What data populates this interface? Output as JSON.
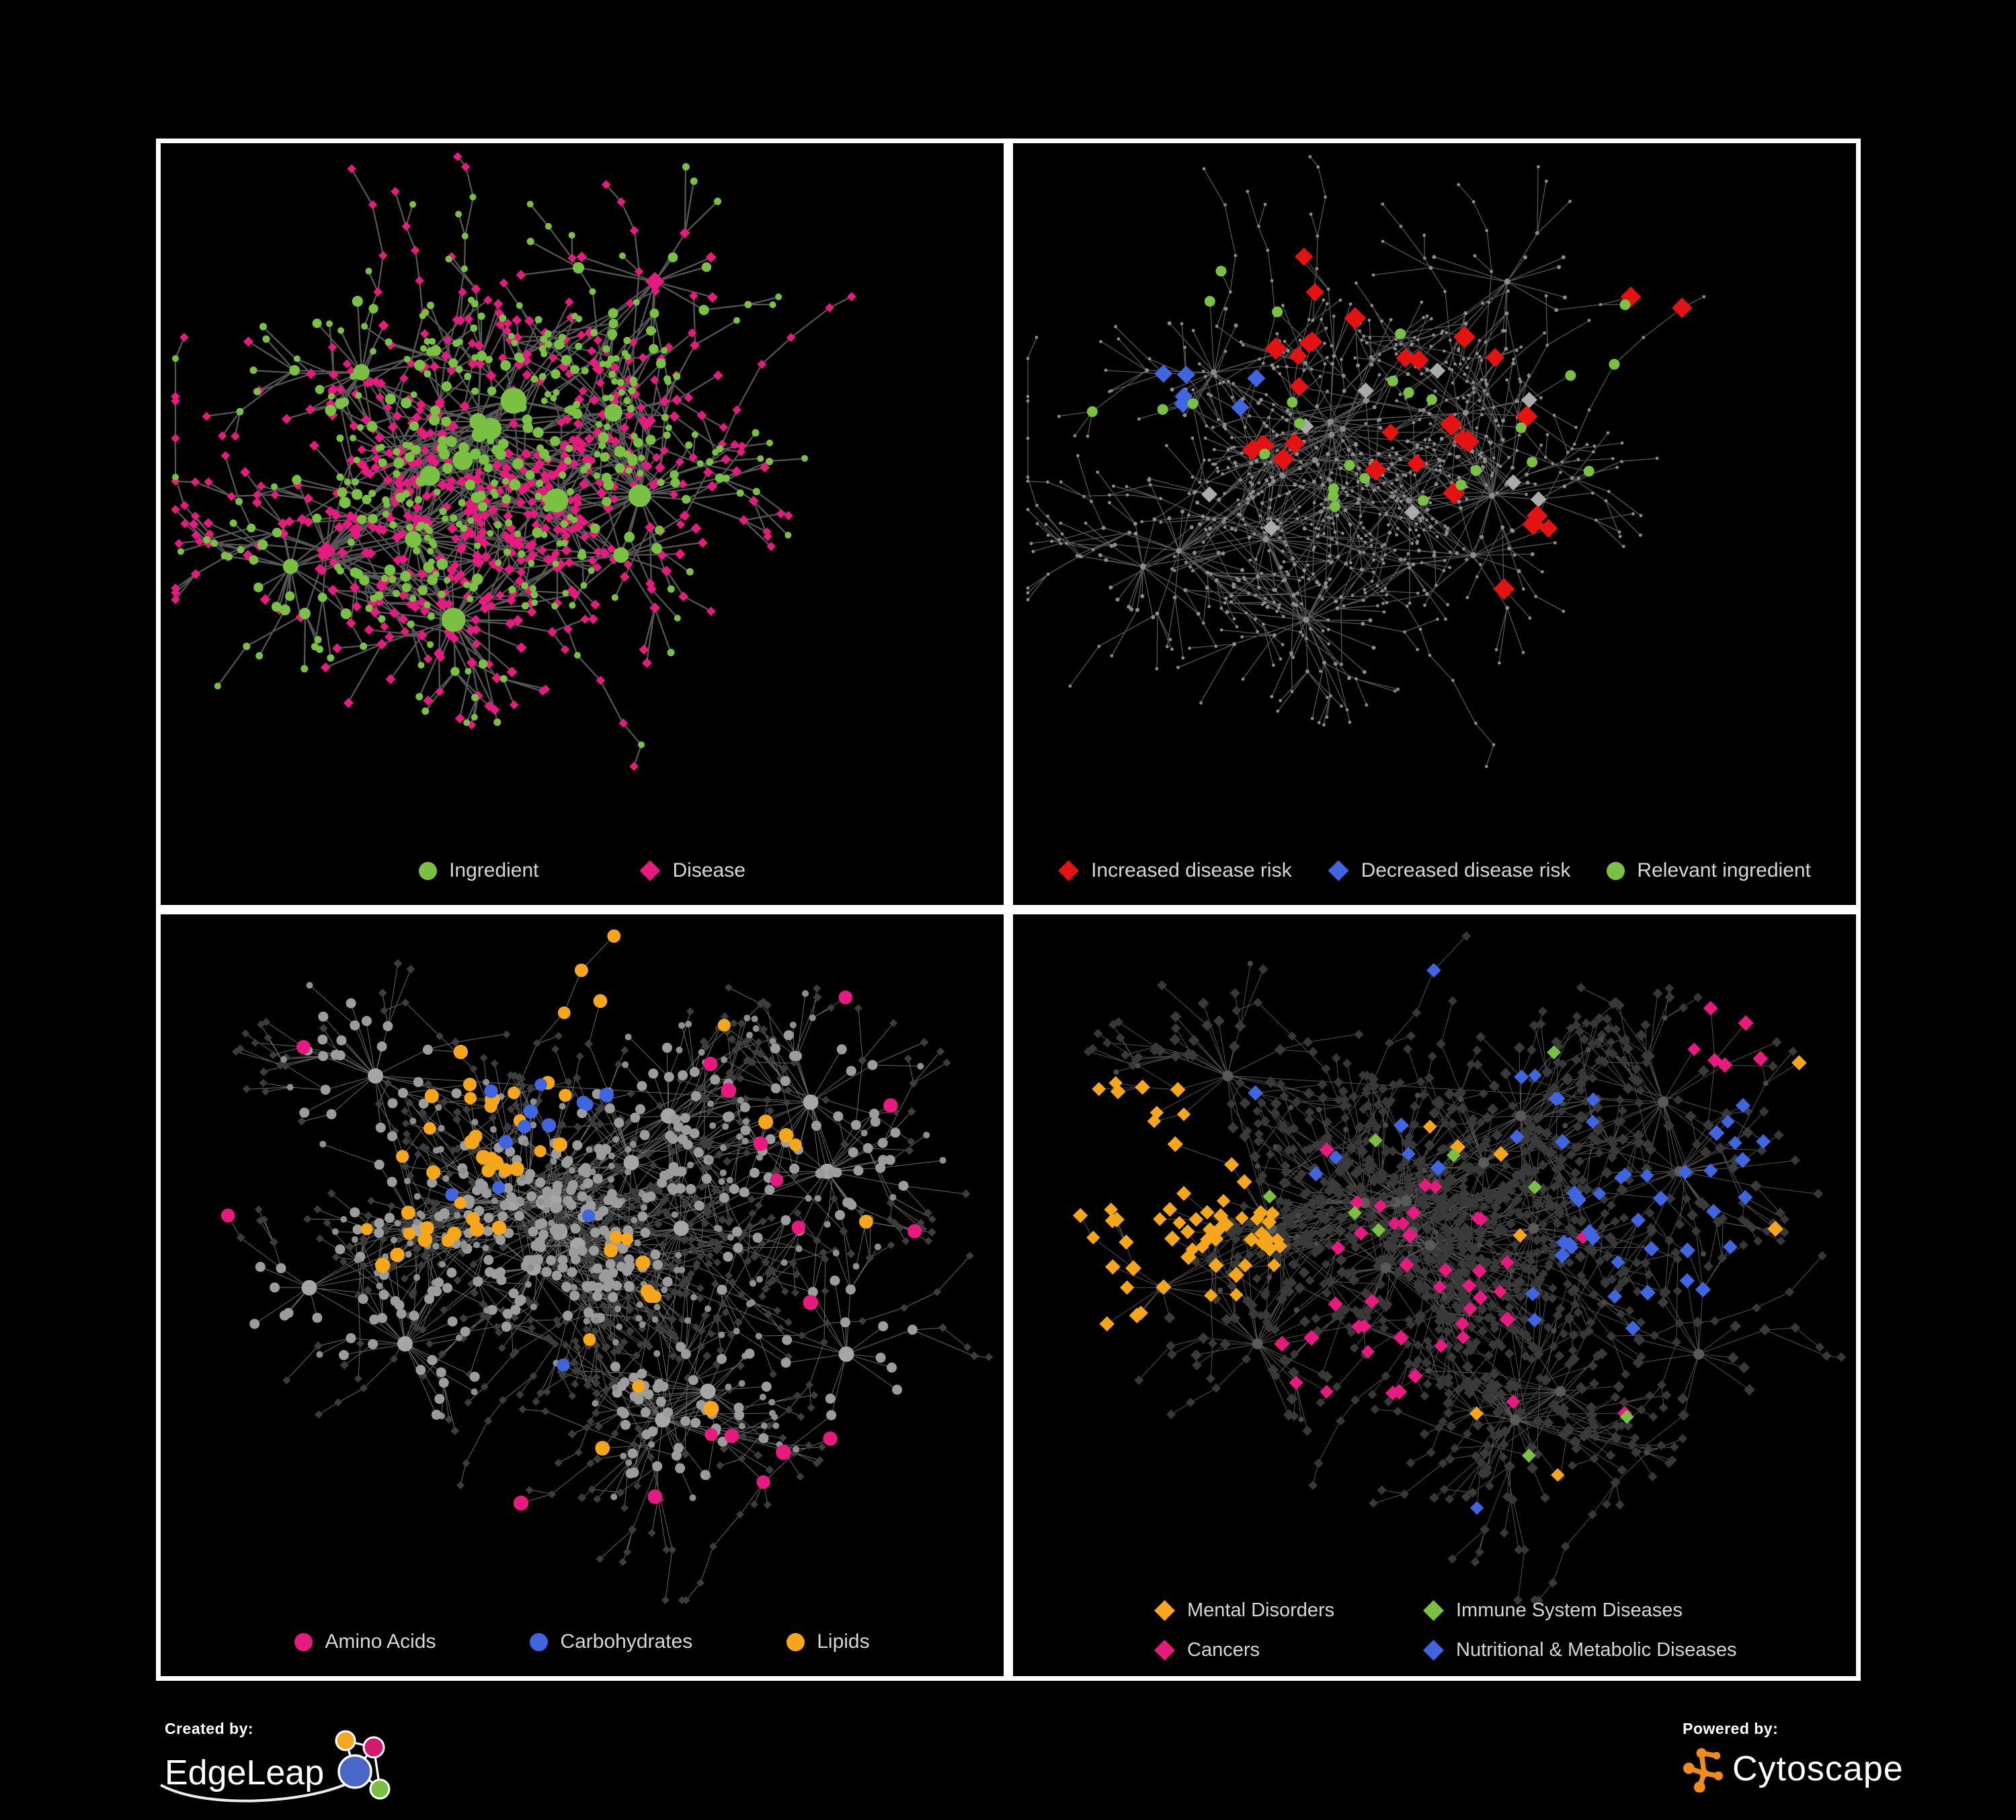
{
  "page": {
    "background": "#000000"
  },
  "colors": {
    "panel_border": "#ffffff",
    "legend_text": "#d6d6d6",
    "green": "#7ac143",
    "magenta": "#e61a7f",
    "red": "#e51212",
    "blue": "#3f66e0",
    "silver": "#ababab",
    "orange": "#f5a61b",
    "dark_diamond": "#3a3a3a",
    "gray_node": "#a6a6a6",
    "tiny_node": "#8c8c8c",
    "hub_gray": "#5a5a5a",
    "edge_dark": "#5d5d5d",
    "edge_mid": "#6b6b6b",
    "edge_faint": "#8b8b8b",
    "edge_soft": "#757575",
    "edgeleap_orange": "#f5a623",
    "edgeleap_pink": "#d6186e",
    "edgeleap_blue": "#4a67c7",
    "edgeleap_green": "#7ac143",
    "cytoscape_orange": "#f08c1e"
  },
  "panels": [
    {
      "id": "ingredient-disease",
      "legend": [
        {
          "label": "Ingredient",
          "shape": "circle",
          "color": "#7ac143"
        },
        {
          "label": "Disease",
          "shape": "diamond",
          "color": "#e61a7f"
        }
      ]
    },
    {
      "id": "disease-risk",
      "legend": [
        {
          "label": "Increased disease risk",
          "shape": "diamond",
          "color": "#e51212"
        },
        {
          "label": "Decreased disease risk",
          "shape": "diamond",
          "color": "#3f66e0"
        },
        {
          "label": "Relevant ingredient",
          "shape": "circle",
          "color": "#7ac143"
        }
      ]
    },
    {
      "id": "macronutrients",
      "legend": [
        {
          "label": "Amino Acids",
          "shape": "circle",
          "color": "#e61a7f"
        },
        {
          "label": "Carbohydrates",
          "shape": "circle",
          "color": "#3f66e0"
        },
        {
          "label": "Lipids",
          "shape": "circle",
          "color": "#f5a61b"
        }
      ]
    },
    {
      "id": "disease-classes",
      "legend": [
        {
          "label": "Mental Disorders",
          "shape": "diamond",
          "color": "#f5a61b"
        },
        {
          "label": "Immune System Diseases",
          "shape": "diamond",
          "color": "#7ac143"
        },
        {
          "label": "Cancers",
          "shape": "diamond",
          "color": "#e61a7f"
        },
        {
          "label": "Nutritional & Metabolic Diseases",
          "shape": "diamond",
          "color": "#3f66e0"
        }
      ]
    }
  ],
  "footer": {
    "created_by_label": "Created by:",
    "created_by_brand": "EdgeLeap",
    "powered_by_label": "Powered by:",
    "powered_by_brand": "Cytoscape"
  },
  "networks": {
    "top_seed": 11,
    "bottom_seed": 23,
    "p2_highlights": {
      "red": 34,
      "blue": 9,
      "silver": 9,
      "green": 27
    },
    "p3_highlights": {
      "orange": 57,
      "blue": 13,
      "pink": 18
    },
    "p4_highlights": {
      "orange": 76,
      "pink": 49,
      "blue": 58,
      "green": 9
    }
  }
}
